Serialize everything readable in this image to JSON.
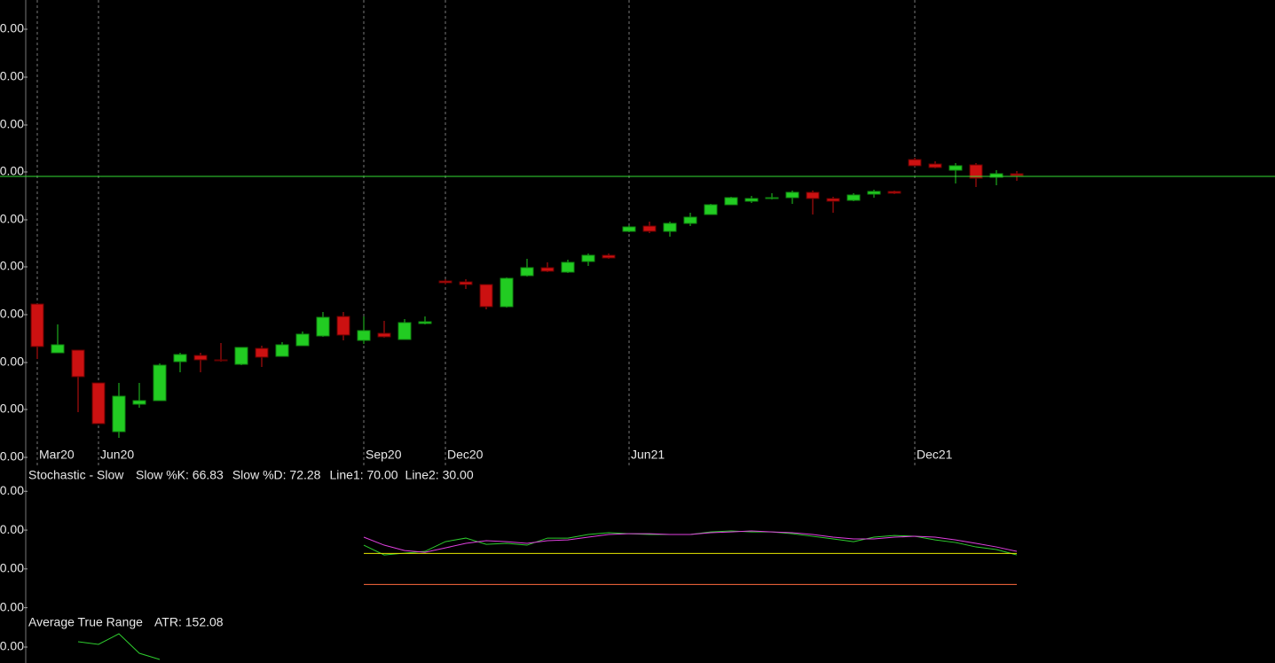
{
  "chart_data": [
    {
      "type": "candlestick",
      "categories": [
        "Mar20",
        null,
        null,
        "Jun20",
        null,
        null,
        null,
        null,
        null,
        null,
        null,
        null,
        null,
        null,
        null,
        null,
        "Sep20",
        null,
        null,
        null,
        "Dec20",
        null,
        null,
        null,
        null,
        null,
        null,
        null,
        null,
        "Jun21",
        null,
        null,
        null,
        null,
        null,
        null,
        null,
        null,
        null,
        null,
        null,
        null,
        null,
        "Dec21",
        null,
        null,
        null,
        null,
        null
      ],
      "open": [
        173,
        118,
        121,
        84,
        29,
        60,
        64,
        108,
        115,
        110,
        105,
        123,
        114,
        126,
        137,
        159,
        132,
        140,
        133,
        151,
        199,
        198,
        195,
        170,
        205,
        214,
        209,
        221,
        228,
        255,
        261,
        255,
        264,
        274,
        285,
        289,
        292,
        293,
        299,
        292,
        290,
        297,
        300,
        336,
        331,
        324,
        330,
        316,
        320
      ],
      "high": [
        173,
        150,
        121,
        84,
        84,
        84,
        106,
        118,
        118,
        129,
        124,
        126,
        130,
        142,
        164,
        164,
        159,
        154,
        156,
        159,
        201,
        201,
        195,
        203,
        224,
        220,
        223,
        230,
        230,
        262,
        266,
        266,
        276,
        286,
        294,
        295,
        298,
        301,
        301,
        294,
        298,
        302,
        301,
        338,
        334,
        332,
        332,
        324,
        323
      ],
      "low": [
        111,
        118,
        51,
        38,
        22,
        56,
        64,
        96,
        96,
        108,
        104,
        102,
        114,
        126,
        136,
        132,
        128,
        135,
        133,
        150,
        195,
        190,
        167,
        169,
        204,
        209,
        208,
        216,
        224,
        254,
        253,
        249,
        261,
        274,
        285,
        287,
        291,
        286,
        274,
        276,
        289,
        293,
        297,
        328,
        326,
        309,
        305,
        307,
        312
      ],
      "close": [
        125,
        127,
        91,
        38,
        69,
        64,
        104,
        116,
        110,
        109,
        124,
        113,
        127,
        139,
        158,
        138,
        143,
        136,
        152,
        153,
        197,
        195,
        170,
        202,
        214,
        210,
        220,
        228,
        225,
        260,
        255,
        264,
        271,
        285,
        293,
        292,
        293,
        299,
        292,
        289,
        296,
        300,
        298,
        329,
        327,
        329,
        315,
        320,
        318
      ],
      "up_color": "#22cc22",
      "down_color": "#cc1111",
      "hline": 317,
      "hline_color": "#33dd33",
      "ylim": [
        -9,
        516
      ],
      "yticks": [
        {
          "value": 483,
          "label": "0.00"
        },
        {
          "value": 429,
          "label": "0.00"
        },
        {
          "value": 375,
          "label": "0.00"
        },
        {
          "value": 322,
          "label": "0.00"
        },
        {
          "value": 268,
          "label": "0.00"
        },
        {
          "value": 215,
          "label": "0.00"
        },
        {
          "value": 161,
          "label": "0.00"
        },
        {
          "value": 107,
          "label": "0.00"
        },
        {
          "value": 54,
          "label": "0.00"
        },
        {
          "value": 0,
          "label": "0.00"
        }
      ],
      "grid": true
    },
    {
      "type": "line",
      "title": "Stochastic - Slow",
      "series": [
        {
          "name": "Slow %K: 66.83",
          "color": "#2ecc2e",
          "values": [
            null,
            null,
            null,
            null,
            null,
            null,
            null,
            null,
            null,
            null,
            null,
            null,
            null,
            null,
            null,
            null,
            80.6,
            68.0,
            70.3,
            72.6,
            85.1,
            89.7,
            81.7,
            82.9,
            80.6,
            89.7,
            89.7,
            94.3,
            96.6,
            95.4,
            94.3,
            94.3,
            94.3,
            97.7,
            98.9,
            97.7,
            97.7,
            95.4,
            92.0,
            88.6,
            85.1,
            90.9,
            93.1,
            92.0,
            87.4,
            84.0,
            78.3,
            74.9,
            68.0
          ]
        },
        {
          "name": "Slow %D: 72.28",
          "color": "#e040e0",
          "values": [
            null,
            null,
            null,
            null,
            null,
            null,
            null,
            null,
            null,
            null,
            null,
            null,
            null,
            null,
            null,
            null,
            90.9,
            80.6,
            73.7,
            71.4,
            77.1,
            82.9,
            86.3,
            85.1,
            82.9,
            86.3,
            87.4,
            90.9,
            94.3,
            95.4,
            95.4,
            94.3,
            94.3,
            96.6,
            97.7,
            98.9,
            97.7,
            96.6,
            94.3,
            90.9,
            88.6,
            88.6,
            90.9,
            92.0,
            90.9,
            87.4,
            82.9,
            78.3,
            72.6
          ]
        }
      ],
      "levels": [
        {
          "name": "Line1: 70.00",
          "value": 70,
          "color": "#e8e800"
        },
        {
          "name": "Line2: 30.00",
          "value": 30,
          "color": "#ff6a3d"
        }
      ],
      "ylim": [
        -5,
        180
      ],
      "yticks": [
        {
          "value": 150,
          "label": "0.00"
        },
        {
          "value": 100,
          "label": "0.00"
        },
        {
          "value": 50,
          "label": "0.00"
        },
        {
          "value": 0,
          "label": "0.00"
        }
      ]
    },
    {
      "type": "line",
      "title": "Average True Range",
      "series": [
        {
          "name": "ATR: 152.08",
          "color": "#2ecc2e",
          "values": [
            null,
            null,
            24,
            21,
            33,
            11,
            4,
            null,
            null,
            null,
            null,
            null,
            null,
            null,
            null,
            null,
            null,
            null,
            null,
            null,
            null,
            null,
            null,
            null,
            null,
            null,
            null,
            null,
            null,
            null,
            null,
            null,
            null,
            null,
            null,
            null,
            null,
            null,
            null,
            null,
            null,
            null,
            null,
            null,
            null,
            null,
            null,
            null,
            null
          ]
        }
      ],
      "ylim": [
        0,
        58
      ],
      "yticks": [
        {
          "value": 18,
          "label": "0.00"
        }
      ]
    }
  ]
}
